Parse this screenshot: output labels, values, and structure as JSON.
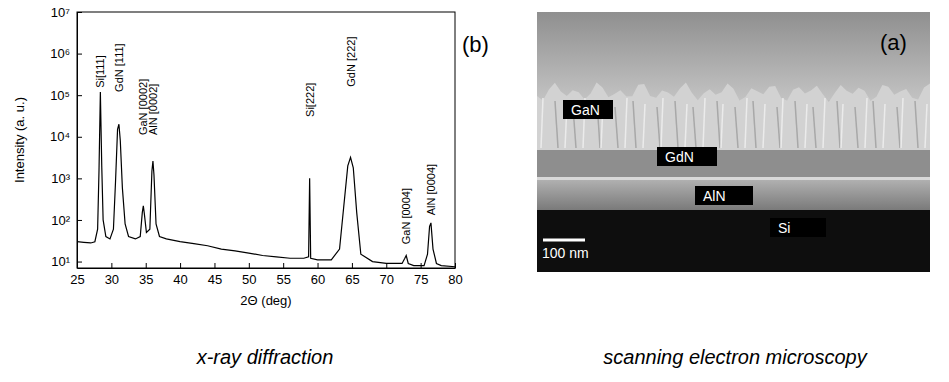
{
  "chart_data": {
    "type": "line",
    "panel_label": "(b)",
    "x_label": "2Θ (deg)",
    "y_label": "Intensity (a. u.)",
    "x": [
      25,
      26,
      27,
      27.6,
      28,
      28.2,
      28.4,
      28.6,
      28.8,
      29.2,
      29.8,
      30.3,
      30.6,
      30.9,
      31.1,
      31.3,
      31.6,
      32,
      32.5,
      33.5,
      34.2,
      34.5,
      34.65,
      34.8,
      35.1,
      35.6,
      35.9,
      36.05,
      36.2,
      36.5,
      37,
      38,
      40,
      42,
      44,
      46,
      48,
      50,
      52,
      54,
      56,
      58,
      58.7,
      58.85,
      59,
      60,
      62,
      63.2,
      63.8,
      64.4,
      64.8,
      65.2,
      65.7,
      66.3,
      68,
      70,
      72.3,
      72.7,
      72.9,
      73.2,
      74,
      75.5,
      76,
      76.3,
      76.5,
      76.8,
      77.3,
      78,
      80
    ],
    "series": [
      {
        "color": "#000000",
        "line_style": "solid",
        "values": [
          30,
          29,
          28,
          30,
          60,
          1500,
          120000,
          2000,
          100,
          40,
          35,
          60,
          800,
          15000,
          20000,
          8000,
          600,
          80,
          40,
          35,
          40,
          150,
          220,
          140,
          50,
          60,
          1500,
          2600,
          1200,
          80,
          40,
          35,
          30,
          27,
          24,
          20,
          18,
          16,
          14,
          13,
          12,
          12,
          13,
          1000,
          12,
          11,
          11,
          20,
          200,
          2000,
          3200,
          1800,
          150,
          15,
          10,
          9,
          9,
          12,
          14,
          9,
          8,
          8,
          15,
          70,
          85,
          20,
          9,
          8,
          7.5
        ]
      }
    ],
    "annotations": [
      {
        "text": "Si[111]",
        "x": 28.4,
        "y": 150000
      },
      {
        "text": "GdN [111]",
        "x": 31.1,
        "y": 120000
      },
      {
        "text": "GaN [0002]",
        "x": 34.65,
        "y": 11000
      },
      {
        "text": "AlN [0002]",
        "x": 36.05,
        "y": 11000
      },
      {
        "text": "Si[222]",
        "x": 58.85,
        "y": 30000
      },
      {
        "text": "GdN [222]",
        "x": 64.8,
        "y": 160000
      },
      {
        "text": "GaN [0004]",
        "x": 72.9,
        "y": 26
      },
      {
        "text": "AlN [0004]",
        "x": 76.5,
        "y": 130
      }
    ],
    "xlim": [
      25,
      80
    ],
    "xticks": [
      25,
      30,
      35,
      40,
      45,
      50,
      55,
      60,
      65,
      70,
      75,
      80
    ],
    "ylim": [
      7,
      10000000
    ],
    "yticks": [
      {
        "value": 10,
        "label": "10¹"
      },
      {
        "value": 100,
        "label": "10²"
      },
      {
        "value": 1000,
        "label": "10³"
      },
      {
        "value": 10000,
        "label": "10⁴"
      },
      {
        "value": 100000,
        "label": "10⁵"
      },
      {
        "value": 1000000,
        "label": "10⁶"
      },
      {
        "value": 10000000,
        "label": "10⁷"
      }
    ],
    "log": "y",
    "grid": false
  },
  "sem_image": {
    "panel_label": "(a)",
    "labels": [
      "GaN",
      "GdN",
      "AlN",
      "Si"
    ],
    "scale_bar": "100 nm"
  },
  "captions": [
    "x-ray diffraction",
    "scanning electron microscopy"
  ]
}
